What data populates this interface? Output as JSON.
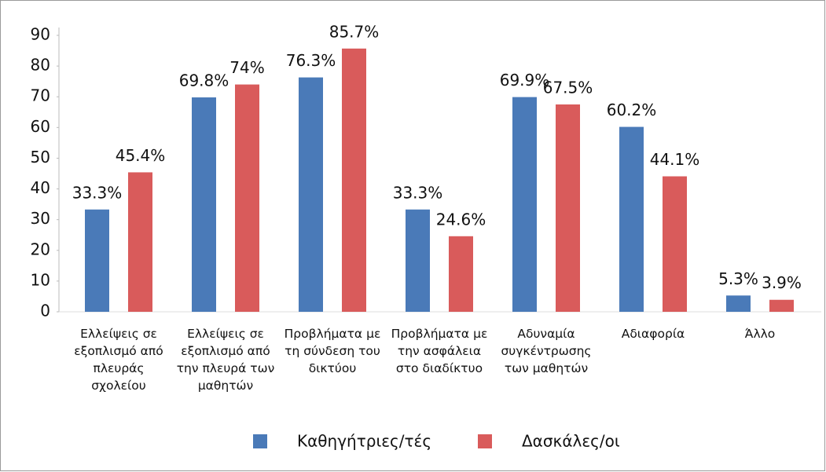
{
  "chart_data": {
    "type": "bar",
    "categories": [
      "Ελλείψεις σε εξοπλισμό από πλευράς σχολείου",
      "Ελλείψεις σε εξοπλισμό από την πλευρά των μαθητών",
      "Προβλήματα με τη σύνδεση του δικτύου",
      "Προβλήματα με την ασφάλεια στο διαδίκτυο",
      "Αδυναμία συγκέντρωσης των μαθητών",
      "Αδιαφορία",
      "Άλλο"
    ],
    "series": [
      {
        "name": "Καθηγήτριες/τές",
        "color": "#4a7ab8",
        "values": [
          33.3,
          69.8,
          76.3,
          33.3,
          69.9,
          60.2,
          5.3
        ],
        "value_labels": [
          "33.3%",
          "69.8%",
          "76.3%",
          "33.3%",
          "69.9%",
          "60.2%",
          "5.3%"
        ]
      },
      {
        "name": "Δασκάλες/οι",
        "color": "#d95b5b",
        "values": [
          45.4,
          74,
          85.7,
          24.6,
          67.5,
          44.1,
          3.9
        ],
        "value_labels": [
          "45.4%",
          "74%",
          "85.7%",
          "24.6%",
          "67.5%",
          "44.1%",
          "3.9%"
        ]
      }
    ],
    "ylim": [
      0,
      90
    ],
    "yticks": [
      0,
      10,
      20,
      30,
      40,
      50,
      60,
      70,
      80,
      90
    ],
    "legend": "bottom"
  }
}
